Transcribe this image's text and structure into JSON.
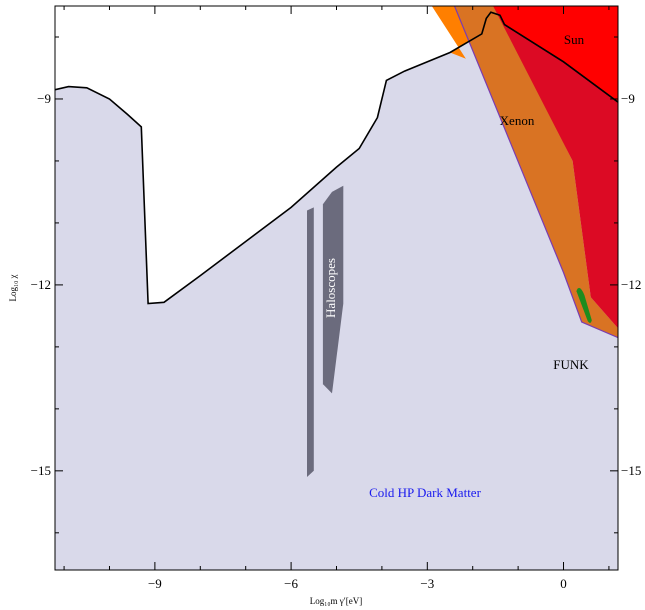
{
  "chart_data": {
    "type": "area",
    "xlabel": "Log₁₀m γ′[eV]",
    "ylabel": "Log₁₀ χ",
    "xlim": [
      -11.2,
      1.2
    ],
    "ylim": [
      -16.6,
      -7.5
    ],
    "xticks": [
      -9,
      -6,
      -3,
      0
    ],
    "xtick_labels": [
      "−9",
      "−6",
      "−3",
      "0"
    ],
    "yticks": [
      -9,
      -12,
      -15
    ],
    "ytick_labels": [
      "−9",
      "−12",
      "−15"
    ],
    "grid": false,
    "colors": {
      "cold_dm": "#d9d9ea",
      "haloscopes": "#6b6b7d",
      "sun": "#ff0000",
      "sun_dark": "#dc0a24",
      "xenon": "#d97323",
      "xenon_bright": "#ff7f00",
      "funk": "#1e8c1e",
      "boundary": "#000000",
      "cold_dm_label": "#1a1aee"
    },
    "labels": {
      "sun": "Sun",
      "xenon": "Xenon",
      "haloscopes": "Haloscopes",
      "funk": "FUNK",
      "cold_dm": "Cold HP Dark Matter"
    },
    "series": [
      {
        "name": "Cold HP Dark Matter",
        "kind": "region-boundary",
        "points": [
          [
            -11.2,
            -8.85
          ],
          [
            -10.9,
            -8.8
          ],
          [
            -10.5,
            -8.82
          ],
          [
            -10.0,
            -9.0
          ],
          [
            -9.6,
            -9.25
          ],
          [
            -9.3,
            -9.45
          ],
          [
            -9.15,
            -12.3
          ],
          [
            -8.8,
            -12.28
          ],
          [
            -8.0,
            -11.85
          ],
          [
            -7.0,
            -11.3
          ],
          [
            -6.0,
            -10.75
          ],
          [
            -5.0,
            -10.1
          ],
          [
            -4.5,
            -9.8
          ],
          [
            -4.1,
            -9.3
          ],
          [
            -3.9,
            -8.7
          ],
          [
            -3.5,
            -8.55
          ],
          [
            -2.5,
            -8.25
          ],
          [
            -1.8,
            -7.95
          ],
          [
            -1.7,
            -7.7
          ],
          [
            -1.6,
            -7.6
          ],
          [
            -1.4,
            -7.65
          ],
          [
            -1.3,
            -7.8
          ],
          [
            0.0,
            -8.4
          ],
          [
            1.2,
            -9.05
          ]
        ]
      },
      {
        "name": "Haloscopes",
        "kind": "band",
        "points": [
          [
            -5.65,
            -10.8
          ],
          [
            -5.5,
            -10.75
          ],
          [
            -5.5,
            -15.0
          ],
          [
            -5.65,
            -15.1
          ],
          [
            -5.3,
            -10.7
          ],
          [
            -5.1,
            -10.5
          ],
          [
            -5.1,
            -13.75
          ],
          [
            -5.3,
            -13.6
          ],
          [
            -5.1,
            -10.5
          ],
          [
            -4.85,
            -10.4
          ],
          [
            -4.85,
            -12.3
          ],
          [
            -5.1,
            -13.75
          ]
        ]
      },
      {
        "name": "Xenon",
        "kind": "region",
        "points": [
          [
            -2.9,
            -7.5
          ],
          [
            -1.5,
            -7.5
          ],
          [
            0.2,
            -10.0
          ],
          [
            0.6,
            -12.2
          ],
          [
            1.2,
            -12.7
          ],
          [
            1.2,
            -12.85
          ],
          [
            0.4,
            -12.6
          ],
          [
            0.0,
            -11.8
          ],
          [
            -2.4,
            -7.5
          ]
        ]
      },
      {
        "name": "Sun",
        "kind": "region",
        "points": [
          [
            -1.55,
            -7.5
          ],
          [
            1.2,
            -7.5
          ],
          [
            1.2,
            -12.7
          ],
          [
            0.6,
            -12.2
          ],
          [
            0.2,
            -10.0
          ]
        ]
      },
      {
        "name": "FUNK",
        "kind": "spot",
        "points": [
          [
            0.35,
            -12.1
          ],
          [
            0.6,
            -12.6
          ]
        ]
      }
    ]
  }
}
